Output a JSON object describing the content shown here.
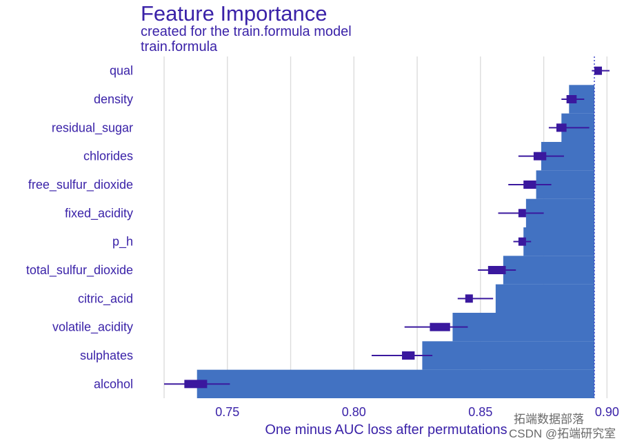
{
  "title": "Feature Importance",
  "subtitle": "created for the train.formula model",
  "panel_label": "train.formula",
  "watermark": {
    "line1": "拓端数据部落",
    "line2": "CSDN @拓端研究室"
  },
  "colors": {
    "bar": "#4272c2",
    "text": "#3a22a8",
    "box": "#3a189e",
    "grid": "#dcdcdc",
    "baseline": "#3a44c8"
  },
  "chart_data": {
    "type": "bar",
    "orientation": "horizontal",
    "title": "Feature Importance",
    "subtitle": "created for the train.formula model",
    "panel": "train.formula",
    "xlabel": "One minus AUC loss after permutations",
    "ylabel": "",
    "xlim": [
      0.725,
      0.905
    ],
    "baseline": 0.895,
    "xticks": [
      0.75,
      0.8,
      0.85,
      0.9
    ],
    "xtick_labels": [
      "0.75",
      "0.80",
      "0.85",
      "0.90"
    ],
    "grid": true,
    "categories": [
      "qual",
      "density",
      "residual_sugar",
      "chlorides",
      "free_sulfur_dioxide",
      "fixed_acidity",
      "p_h",
      "total_sulfur_dioxide",
      "citric_acid",
      "volatile_acidity",
      "sulphates",
      "alcohol"
    ],
    "values": [
      0.895,
      0.885,
      0.882,
      0.874,
      0.872,
      0.868,
      0.867,
      0.859,
      0.856,
      0.839,
      0.827,
      0.738
    ],
    "boxplots": [
      {
        "feature": "qual",
        "min": 0.894,
        "q1": 0.895,
        "median": 0.896,
        "q3": 0.898,
        "max": 0.901
      },
      {
        "feature": "density",
        "min": 0.882,
        "q1": 0.884,
        "median": 0.886,
        "q3": 0.888,
        "max": 0.891
      },
      {
        "feature": "residual_sugar",
        "min": 0.877,
        "q1": 0.88,
        "median": 0.882,
        "q3": 0.884,
        "max": 0.893
      },
      {
        "feature": "chlorides",
        "min": 0.865,
        "q1": 0.871,
        "median": 0.874,
        "q3": 0.876,
        "max": 0.883
      },
      {
        "feature": "free_sulfur_dioxide",
        "min": 0.861,
        "q1": 0.867,
        "median": 0.87,
        "q3": 0.872,
        "max": 0.878
      },
      {
        "feature": "fixed_acidity",
        "min": 0.857,
        "q1": 0.865,
        "median": 0.867,
        "q3": 0.868,
        "max": 0.875
      },
      {
        "feature": "p_h",
        "min": 0.863,
        "q1": 0.865,
        "median": 0.866,
        "q3": 0.868,
        "max": 0.87
      },
      {
        "feature": "total_sulfur_dioxide",
        "min": 0.849,
        "q1": 0.853,
        "median": 0.857,
        "q3": 0.86,
        "max": 0.864
      },
      {
        "feature": "citric_acid",
        "min": 0.841,
        "q1": 0.844,
        "median": 0.846,
        "q3": 0.847,
        "max": 0.855
      },
      {
        "feature": "volatile_acidity",
        "min": 0.82,
        "q1": 0.83,
        "median": 0.834,
        "q3": 0.838,
        "max": 0.845
      },
      {
        "feature": "sulphates",
        "min": 0.807,
        "q1": 0.819,
        "median": 0.821,
        "q3": 0.824,
        "max": 0.831
      },
      {
        "feature": "alcohol",
        "min": 0.725,
        "q1": 0.733,
        "median": 0.737,
        "q3": 0.742,
        "max": 0.751
      }
    ]
  }
}
